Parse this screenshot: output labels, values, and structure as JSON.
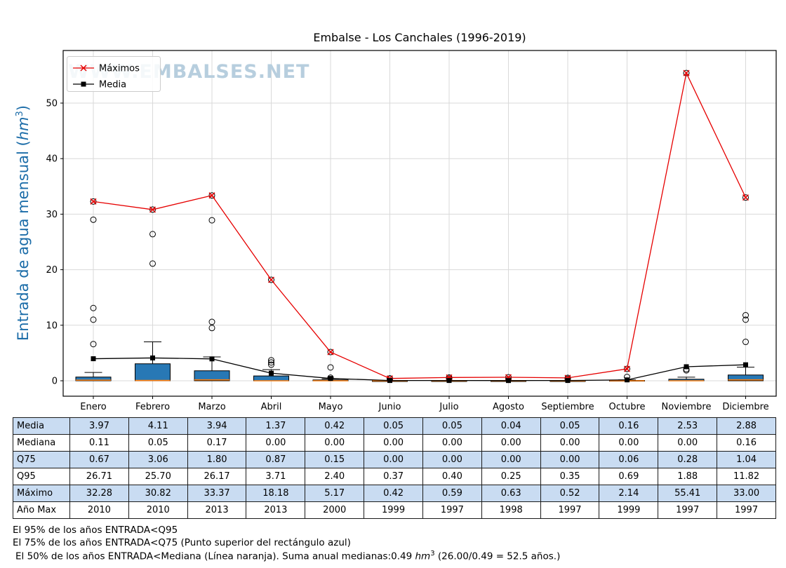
{
  "title": "Embalse - Los Canchales (1996-2019)",
  "watermark": "WWW.EMBALSES.NET",
  "ylabel": {
    "prefix": "Entrada de agua mensual (",
    "unit": "hm",
    "sup": "3",
    "suffix": ")"
  },
  "colors": {
    "box_fill": "#2878b5",
    "median": "#ff7f0e",
    "maximos_line": "#e60000",
    "media_line": "#000000",
    "ylabel": "#1b6ca8",
    "watermark": "#b7cede",
    "grid": "#d9d9d9",
    "table_alt": "#c9dcf2"
  },
  "chart_data": {
    "type": "boxplot+line",
    "title": "Embalse - Los Canchales (1996-2019)",
    "ylabel": "Entrada de agua mensual (hm³)",
    "categories": [
      "Enero",
      "Febrero",
      "Marzo",
      "Abril",
      "Mayo",
      "Junio",
      "Julio",
      "Agosto",
      "Septiembre",
      "Octubre",
      "Noviembre",
      "Diciembre"
    ],
    "yticks": [
      0,
      10,
      20,
      30,
      40,
      50
    ],
    "ylim": [
      -2.8,
      59.5
    ],
    "grid": true,
    "legend_position": "upper left",
    "series": [
      {
        "name": "Máximos",
        "marker": "x",
        "color": "#e60000",
        "values": [
          32.28,
          30.82,
          33.37,
          18.18,
          5.17,
          0.42,
          0.59,
          0.63,
          0.52,
          2.14,
          55.41,
          33.0
        ]
      },
      {
        "name": "Media",
        "marker": "square",
        "color": "#000000",
        "values": [
          3.97,
          4.11,
          3.94,
          1.37,
          0.42,
          0.05,
          0.05,
          0.04,
          0.05,
          0.16,
          2.53,
          2.88
        ]
      }
    ],
    "boxplots": [
      {
        "q1": 0.0,
        "median": 0.11,
        "q3": 0.67,
        "whisker_high": 1.5,
        "fliers": [
          6.6,
          11.0,
          13.1,
          29.0,
          32.28
        ]
      },
      {
        "q1": 0.0,
        "median": 0.05,
        "q3": 3.06,
        "whisker_high": 7.0,
        "fliers": [
          21.1,
          26.4,
          30.82
        ]
      },
      {
        "q1": 0.0,
        "median": 0.17,
        "q3": 1.8,
        "whisker_high": 4.3,
        "fliers": [
          9.5,
          10.6,
          28.9,
          33.37
        ]
      },
      {
        "q1": 0.0,
        "median": 0.0,
        "q3": 0.87,
        "whisker_high": 2.0,
        "fliers": [
          2.9,
          3.3,
          3.7,
          18.18
        ]
      },
      {
        "q1": 0.0,
        "median": 0.0,
        "q3": 0.15,
        "whisker_high": 0.35,
        "fliers": [
          0.55,
          2.4,
          5.17
        ]
      },
      {
        "q1": 0.0,
        "median": 0.0,
        "q3": 0.0,
        "whisker_high": 0.0,
        "fliers": [
          0.37,
          0.42
        ]
      },
      {
        "q1": 0.0,
        "median": 0.0,
        "q3": 0.0,
        "whisker_high": 0.0,
        "fliers": [
          0.4,
          0.59
        ]
      },
      {
        "q1": 0.0,
        "median": 0.0,
        "q3": 0.0,
        "whisker_high": 0.0,
        "fliers": [
          0.25,
          0.63
        ]
      },
      {
        "q1": 0.0,
        "median": 0.0,
        "q3": 0.0,
        "whisker_high": 0.0,
        "fliers": [
          0.35,
          0.52
        ]
      },
      {
        "q1": 0.0,
        "median": 0.0,
        "q3": 0.06,
        "whisker_high": 0.15,
        "fliers": [
          0.69,
          2.14
        ]
      },
      {
        "q1": 0.0,
        "median": 0.0,
        "q3": 0.28,
        "whisker_high": 0.65,
        "fliers": [
          1.88,
          2.1,
          55.41
        ]
      },
      {
        "q1": 0.0,
        "median": 0.16,
        "q3": 1.04,
        "whisker_high": 2.45,
        "fliers": [
          7.0,
          11.0,
          11.8,
          33.0
        ]
      }
    ]
  },
  "table": {
    "rows": [
      {
        "label": "Media",
        "values": [
          "3.97",
          "4.11",
          "3.94",
          "1.37",
          "0.42",
          "0.05",
          "0.05",
          "0.04",
          "0.05",
          "0.16",
          "2.53",
          "2.88"
        ]
      },
      {
        "label": "Mediana",
        "values": [
          "0.11",
          "0.05",
          "0.17",
          "0.00",
          "0.00",
          "0.00",
          "0.00",
          "0.00",
          "0.00",
          "0.00",
          "0.00",
          "0.16"
        ]
      },
      {
        "label": "Q75",
        "values": [
          "0.67",
          "3.06",
          "1.80",
          "0.87",
          "0.15",
          "0.00",
          "0.00",
          "0.00",
          "0.00",
          "0.06",
          "0.28",
          "1.04"
        ]
      },
      {
        "label": "Q95",
        "values": [
          "26.71",
          "25.70",
          "26.17",
          "3.71",
          "2.40",
          "0.37",
          "0.40",
          "0.25",
          "0.35",
          "0.69",
          "1.88",
          "11.82"
        ]
      },
      {
        "label": "Máximo",
        "values": [
          "32.28",
          "30.82",
          "33.37",
          "18.18",
          "5.17",
          "0.42",
          "0.59",
          "0.63",
          "0.52",
          "2.14",
          "55.41",
          "33.00"
        ]
      },
      {
        "label": "Año Max",
        "values": [
          "2010",
          "2010",
          "2013",
          "2013",
          "2000",
          "1999",
          "1997",
          "1998",
          "1997",
          "1999",
          "1997",
          "1997"
        ]
      }
    ]
  },
  "footer": {
    "line1": "El 95% de los años ENTRADA<Q95",
    "line2": "El 75% de los años ENTRADA<Q75 (Punto superior del rectángulo azul)",
    "line3": {
      "before": "El 50% de los años ENTRADA<Mediana (Línea naranja). Suma anual medianas:0.49 ",
      "unit": "hm",
      "sup": "3",
      "after": " (26.00/0.49 = 52.5 años.)"
    }
  }
}
